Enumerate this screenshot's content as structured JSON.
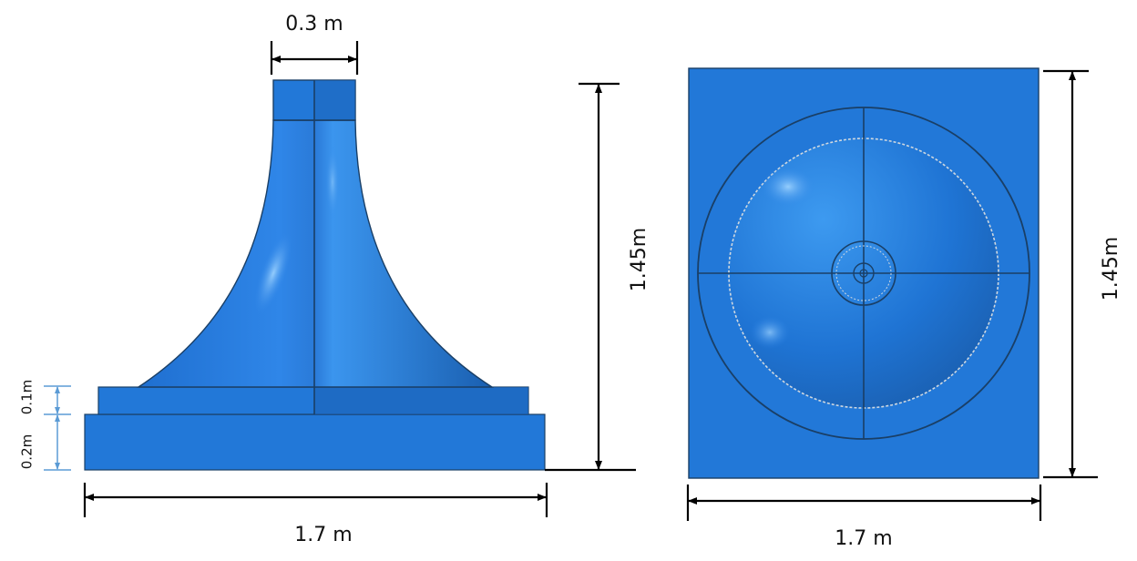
{
  "side_view": {
    "top_width": "0.3 m",
    "height": "1.45m",
    "band_height": "0.1m",
    "base_height": "0.2m",
    "width": "1.7 m"
  },
  "top_view": {
    "height": "1.45m",
    "width": "1.7 m"
  }
}
